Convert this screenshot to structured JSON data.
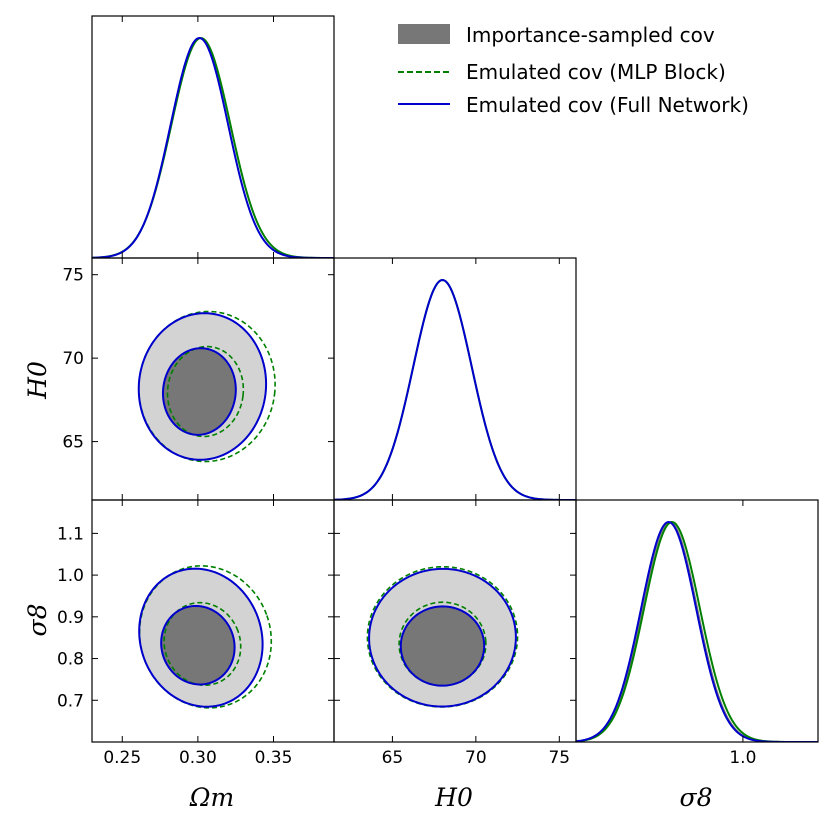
{
  "colors": {
    "importance_fill_inner": "#777777",
    "importance_fill_outer": "#d3d3d3",
    "mlp_block": "#008000",
    "full_network": "#0000cc"
  },
  "legend": {
    "importance": "Importance-sampled cov",
    "mlp": "Emulated cov (MLP Block)",
    "full": "Emulated cov (Full Network)"
  },
  "axis_titles": {
    "h0_y": "H0",
    "s8_y": "σ8",
    "om_x": "Ωm",
    "h0_x": "H0",
    "s8_x": "σ8"
  },
  "chart_data": {
    "type": "corner",
    "parameters": [
      "Ωm",
      "H0",
      "σ8"
    ],
    "ranges": {
      "Om": [
        0.23,
        0.39
      ],
      "H0": [
        61.5,
        76.0
      ],
      "s8": [
        0.6,
        1.18
      ]
    },
    "ticks": {
      "Om": {
        "values": [
          0.25,
          0.3,
          0.35
        ],
        "labels": [
          "0.25",
          "0.30",
          "0.35"
        ]
      },
      "H0": {
        "values": [
          65,
          70,
          75
        ],
        "labels": [
          "65",
          "70",
          "75"
        ]
      },
      "s8_y": {
        "values": [
          0.7,
          0.8,
          0.9,
          1.0,
          1.1
        ],
        "labels": [
          "0.7",
          "0.8",
          "0.9",
          "1.0",
          "1.1"
        ]
      },
      "s8_x": {
        "values": [
          1.0
        ],
        "labels": [
          "1.0"
        ]
      }
    },
    "marginals": {
      "Om": {
        "importance": {
          "mean": 0.301,
          "sd": 0.019
        },
        "mlp": {
          "mean": 0.302,
          "sd": 0.0195
        },
        "full": {
          "mean": 0.301,
          "sd": 0.019
        }
      },
      "H0": {
        "importance": {
          "mean": 68.0,
          "sd": 1.75
        },
        "mlp": {
          "mean": 68.0,
          "sd": 1.75
        },
        "full": {
          "mean": 68.0,
          "sd": 1.75
        }
      },
      "s8": {
        "importance": {
          "mean": 0.825,
          "sd": 0.066
        },
        "mlp": {
          "mean": 0.83,
          "sd": 0.067
        },
        "full": {
          "mean": 0.822,
          "sd": 0.066
        }
      }
    },
    "contours_2d": [
      {
        "x": "Om",
        "y": "H0",
        "importance": {
          "inner": {
            "center": [
              0.301,
              68.0
            ],
            "radii": [
              0.024,
              2.6
            ],
            "tilt": -0.12
          },
          "outer": {
            "center": [
              0.303,
              68.3
            ],
            "radii": [
              0.042,
              4.4
            ],
            "tilt": -0.12
          }
        },
        "mlp": {
          "inner": {
            "center": [
              0.305,
              68.0
            ],
            "radii": [
              0.025,
              2.7
            ],
            "tilt": -0.12
          },
          "outer": {
            "center": [
              0.306,
              68.3
            ],
            "radii": [
              0.045,
              4.5
            ],
            "tilt": -0.12
          }
        },
        "full": {
          "inner": {
            "center": [
              0.301,
              68.0
            ],
            "radii": [
              0.024,
              2.6
            ],
            "tilt": -0.12
          },
          "outer": {
            "center": [
              0.303,
              68.3
            ],
            "radii": [
              0.042,
              4.4
            ],
            "tilt": -0.12
          }
        }
      },
      {
        "x": "Om",
        "y": "s8",
        "importance": {
          "inner": {
            "center": [
              0.3,
              0.832
            ],
            "radii": [
              0.024,
              0.095
            ],
            "tilt": 0.35
          },
          "outer": {
            "center": [
              0.302,
              0.85
            ],
            "radii": [
              0.04,
              0.168
            ],
            "tilt": 0.35
          }
        },
        "mlp": {
          "inner": {
            "center": [
              0.303,
              0.835
            ],
            "radii": [
              0.025,
              0.1
            ],
            "tilt": 0.35
          },
          "outer": {
            "center": [
              0.305,
              0.852
            ],
            "radii": [
              0.043,
              0.172
            ],
            "tilt": 0.35
          }
        },
        "full": {
          "inner": {
            "center": [
              0.3,
              0.832
            ],
            "radii": [
              0.024,
              0.095
            ],
            "tilt": 0.35
          },
          "outer": {
            "center": [
              0.302,
              0.85
            ],
            "radii": [
              0.04,
              0.168
            ],
            "tilt": 0.35
          }
        }
      },
      {
        "x": "H0",
        "y": "s8",
        "importance": {
          "inner": {
            "center": [
              68.0,
              0.83
            ],
            "radii": [
              2.5,
              0.095
            ],
            "tilt": 0.05
          },
          "outer": {
            "center": [
              68.0,
              0.85
            ],
            "radii": [
              4.4,
              0.165
            ],
            "tilt": 0.05
          }
        },
        "mlp": {
          "inner": {
            "center": [
              68.0,
              0.835
            ],
            "radii": [
              2.6,
              0.1
            ],
            "tilt": 0.05
          },
          "outer": {
            "center": [
              68.0,
              0.852
            ],
            "radii": [
              4.5,
              0.168
            ],
            "tilt": 0.05
          }
        },
        "full": {
          "inner": {
            "center": [
              68.0,
              0.83
            ],
            "radii": [
              2.5,
              0.095
            ],
            "tilt": 0.05
          },
          "outer": {
            "center": [
              68.0,
              0.85
            ],
            "radii": [
              4.4,
              0.165
            ],
            "tilt": 0.05
          }
        }
      }
    ],
    "series": [
      {
        "name": "Importance-sampled cov"
      },
      {
        "name": "Emulated cov (MLP Block)"
      },
      {
        "name": "Emulated cov (Full Network)"
      }
    ],
    "grid": false,
    "legend_position": "top-right"
  }
}
